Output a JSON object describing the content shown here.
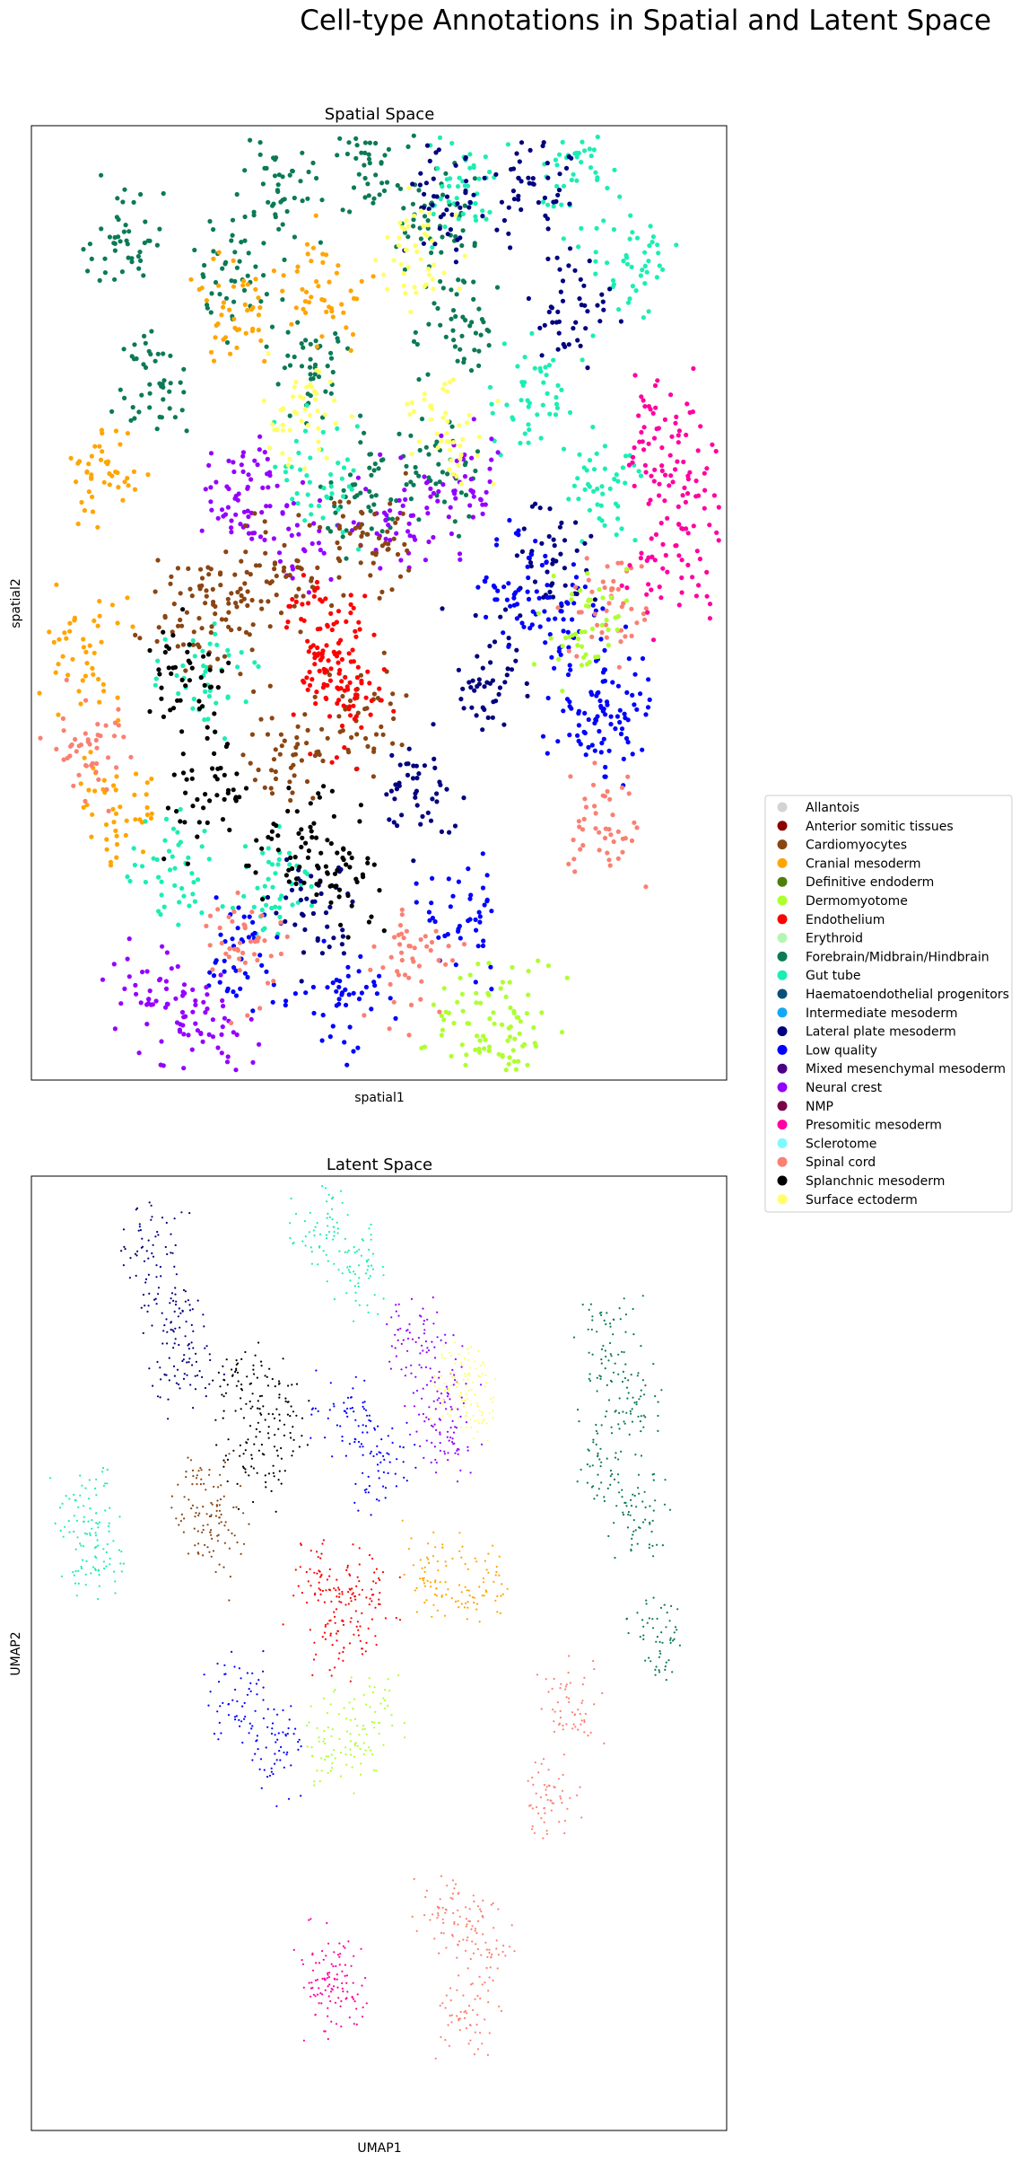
{
  "title": "Cell-type Annotations in Spatial and Latent Space",
  "chart_data": [
    {
      "type": "scatter",
      "title": "Spatial Space",
      "xlabel": "spatial1",
      "ylabel": "spatial2",
      "xticks": [],
      "yticks": [],
      "grid": false,
      "regions": [
        {
          "category": "Forebrain/Midbrain/Hindbrain",
          "points": [
            [
              0.13,
              0.12
            ],
            [
              0.17,
              0.27
            ],
            [
              0.28,
              0.15
            ],
            [
              0.36,
              0.08
            ],
            [
              0.48,
              0.06
            ],
            [
              0.58,
              0.1
            ],
            [
              0.62,
              0.22
            ],
            [
              0.58,
              0.36
            ],
            [
              0.47,
              0.38
            ],
            [
              0.41,
              0.26
            ]
          ]
        },
        {
          "category": "Gut tube",
          "points": [
            [
              0.62,
              0.06
            ],
            [
              0.78,
              0.05
            ],
            [
              0.86,
              0.15
            ],
            [
              0.82,
              0.38
            ],
            [
              0.72,
              0.28
            ],
            [
              0.25,
              0.58
            ],
            [
              0.2,
              0.78
            ],
            [
              0.35,
              0.8
            ],
            [
              0.42,
              0.37
            ]
          ]
        },
        {
          "category": "Cranial mesoderm",
          "points": [
            [
              0.1,
              0.36
            ],
            [
              0.08,
              0.55
            ],
            [
              0.12,
              0.72
            ],
            [
              0.3,
              0.19
            ],
            [
              0.42,
              0.17
            ]
          ]
        },
        {
          "category": "Lateral plate mesoderm",
          "points": [
            [
              0.6,
              0.09
            ],
            [
              0.72,
              0.06
            ],
            [
              0.78,
              0.2
            ],
            [
              0.74,
              0.45
            ],
            [
              0.66,
              0.58
            ],
            [
              0.55,
              0.7
            ],
            [
              0.4,
              0.82
            ]
          ]
        },
        {
          "category": "Low quality",
          "points": [
            [
              0.7,
              0.48
            ],
            [
              0.76,
              0.52
            ],
            [
              0.8,
              0.62
            ],
            [
              0.62,
              0.84
            ],
            [
              0.3,
              0.87
            ],
            [
              0.45,
              0.92
            ],
            [
              0.84,
              0.6
            ]
          ]
        },
        {
          "category": "Neural crest",
          "points": [
            [
              0.3,
              0.38
            ],
            [
              0.36,
              0.42
            ],
            [
              0.52,
              0.41
            ],
            [
              0.62,
              0.38
            ],
            [
              0.18,
              0.92
            ],
            [
              0.26,
              0.95
            ]
          ]
        },
        {
          "category": "Cardiomyocytes",
          "points": [
            [
              0.22,
              0.51
            ],
            [
              0.3,
              0.5
            ],
            [
              0.38,
              0.47
            ],
            [
              0.5,
              0.44
            ],
            [
              0.48,
              0.62
            ],
            [
              0.36,
              0.66
            ]
          ]
        },
        {
          "category": "Endothelium",
          "points": [
            [
              0.41,
              0.52
            ],
            [
              0.43,
              0.56
            ],
            [
              0.45,
              0.6
            ]
          ]
        },
        {
          "category": "Splanchnic mesoderm",
          "points": [
            [
              0.22,
              0.58
            ],
            [
              0.26,
              0.7
            ],
            [
              0.38,
              0.76
            ],
            [
              0.45,
              0.79
            ]
          ]
        },
        {
          "category": "Spinal cord",
          "points": [
            [
              0.84,
              0.5
            ],
            [
              0.82,
              0.74
            ],
            [
              0.55,
              0.88
            ],
            [
              0.3,
              0.86
            ],
            [
              0.08,
              0.65
            ]
          ]
        },
        {
          "category": "Presomitic mesoderm",
          "points": [
            [
              0.9,
              0.33
            ],
            [
              0.94,
              0.38
            ],
            [
              0.92,
              0.46
            ]
          ]
        },
        {
          "category": "Surface ectoderm",
          "points": [
            [
              0.56,
              0.14
            ],
            [
              0.6,
              0.32
            ],
            [
              0.39,
              0.3
            ]
          ]
        },
        {
          "category": "Dermomyotome",
          "points": [
            [
              0.8,
              0.52
            ],
            [
              0.63,
              0.95
            ],
            [
              0.7,
              0.93
            ]
          ]
        }
      ]
    },
    {
      "type": "scatter",
      "title": "Latent Space",
      "xlabel": "UMAP1",
      "ylabel": "UMAP2",
      "xticks": [],
      "yticks": [],
      "grid": false,
      "regions": [
        {
          "category": "Lateral plate mesoderm",
          "points": [
            [
              0.17,
              0.08
            ],
            [
              0.2,
              0.14
            ],
            [
              0.22,
              0.2
            ]
          ]
        },
        {
          "category": "Gut tube",
          "points": [
            [
              0.08,
              0.35
            ],
            [
              0.09,
              0.4
            ],
            [
              0.42,
              0.05
            ],
            [
              0.47,
              0.1
            ]
          ]
        },
        {
          "category": "Splanchnic mesoderm",
          "points": [
            [
              0.3,
              0.22
            ],
            [
              0.35,
              0.24
            ],
            [
              0.33,
              0.3
            ]
          ]
        },
        {
          "category": "Cardiomyocytes",
          "points": [
            [
              0.25,
              0.33
            ],
            [
              0.26,
              0.38
            ]
          ]
        },
        {
          "category": "Neural crest",
          "points": [
            [
              0.55,
              0.17
            ],
            [
              0.58,
              0.22
            ],
            [
              0.6,
              0.28
            ]
          ]
        },
        {
          "category": "Low quality",
          "points": [
            [
              0.45,
              0.25
            ],
            [
              0.5,
              0.3
            ],
            [
              0.3,
              0.55
            ],
            [
              0.35,
              0.6
            ]
          ]
        },
        {
          "category": "Endothelium",
          "points": [
            [
              0.42,
              0.43
            ],
            [
              0.48,
              0.44
            ],
            [
              0.45,
              0.48
            ]
          ]
        },
        {
          "category": "Cranial mesoderm",
          "points": [
            [
              0.58,
              0.42
            ],
            [
              0.64,
              0.43
            ]
          ]
        },
        {
          "category": "Forebrain/Midbrain/Hindbrain",
          "points": [
            [
              0.83,
              0.17
            ],
            [
              0.86,
              0.24
            ],
            [
              0.82,
              0.3
            ],
            [
              0.88,
              0.36
            ],
            [
              0.9,
              0.48
            ]
          ]
        },
        {
          "category": "Dermomyotome",
          "points": [
            [
              0.44,
              0.6
            ],
            [
              0.48,
              0.57
            ]
          ]
        },
        {
          "category": "Spinal cord",
          "points": [
            [
              0.6,
              0.77
            ],
            [
              0.65,
              0.8
            ],
            [
              0.62,
              0.88
            ],
            [
              0.78,
              0.55
            ],
            [
              0.75,
              0.65
            ]
          ]
        },
        {
          "category": "Presomitic mesoderm",
          "points": [
            [
              0.43,
              0.83
            ],
            [
              0.44,
              0.86
            ]
          ]
        },
        {
          "category": "Surface ectoderm",
          "points": [
            [
              0.61,
              0.21
            ],
            [
              0.63,
              0.24
            ]
          ]
        }
      ]
    }
  ],
  "legend": {
    "placement": "right",
    "entries": [
      {
        "label": "Allantois",
        "color": "#d3d3d3"
      },
      {
        "label": "Anterior somitic tissues",
        "color": "#8b0000"
      },
      {
        "label": "Cardiomyocytes",
        "color": "#8b4513"
      },
      {
        "label": "Cranial mesoderm",
        "color": "#ffa500"
      },
      {
        "label": "Definitive endoderm",
        "color": "#4f7f0a"
      },
      {
        "label": "Dermomyotome",
        "color": "#adff2f"
      },
      {
        "label": "Endothelium",
        "color": "#ff0000"
      },
      {
        "label": "Erythroid",
        "color": "#b3f5b3"
      },
      {
        "label": "Forebrain/Midbrain/Hindbrain",
        "color": "#0b7a57"
      },
      {
        "label": "Gut tube",
        "color": "#1aeeb3"
      },
      {
        "label": "Haematoendothelial progenitors",
        "color": "#0b4f7a"
      },
      {
        "label": "Intermediate mesoderm",
        "color": "#14a7f5"
      },
      {
        "label": "Lateral plate mesoderm",
        "color": "#00007f"
      },
      {
        "label": "Low quality",
        "color": "#0000ff"
      },
      {
        "label": "Mixed mesenchymal mesoderm",
        "color": "#4b0082"
      },
      {
        "label": "Neural crest",
        "color": "#9400ff"
      },
      {
        "label": "NMP",
        "color": "#7a0049"
      },
      {
        "label": "Presomitic mesoderm",
        "color": "#ff00a0"
      },
      {
        "label": "Sclerotome",
        "color": "#7df9ff"
      },
      {
        "label": "Spinal cord",
        "color": "#fa8072"
      },
      {
        "label": "Splanchnic mesoderm",
        "color": "#000000"
      },
      {
        "label": "Surface ectoderm",
        "color": "#ffff66"
      }
    ]
  }
}
